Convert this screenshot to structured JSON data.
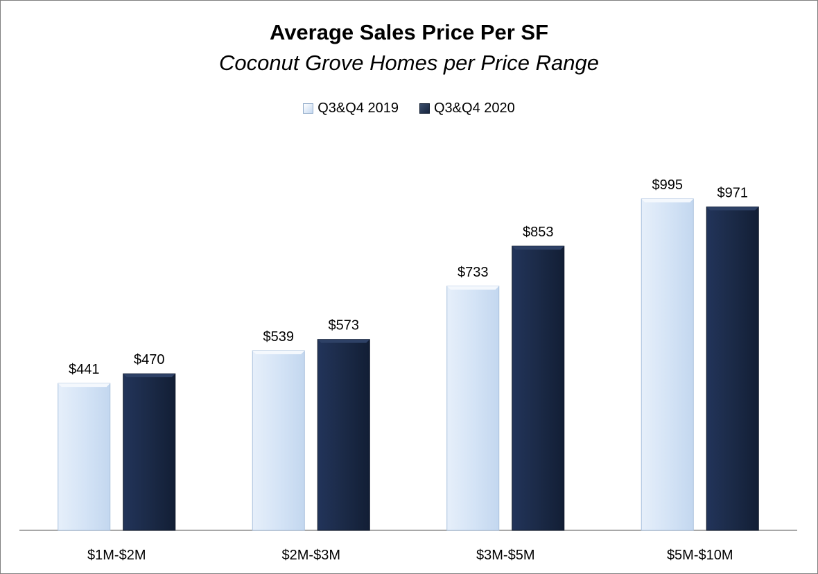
{
  "chart_data": {
    "type": "bar",
    "title": "Average Sales Price Per SF",
    "subtitle": "Coconut Grove Homes per Price Range",
    "categories": [
      "$1M-$2M",
      "$2M-$3M",
      "$3M-$5M",
      "$5M-$10M"
    ],
    "series": [
      {
        "name": "Q3&Q4 2019",
        "values": [
          441,
          539,
          733,
          995
        ],
        "labels": [
          "$441",
          "$539",
          "$733",
          "$995"
        ],
        "color": "#c6d9f1"
      },
      {
        "name": "Q3&Q4 2020",
        "values": [
          470,
          573,
          853,
          971
        ],
        "labels": [
          "$470",
          "$573",
          "$853",
          "$971"
        ],
        "color": "#1b2a47"
      }
    ],
    "ylim": [
      0,
      1130
    ],
    "grid": false,
    "legend_position": "top-center"
  }
}
